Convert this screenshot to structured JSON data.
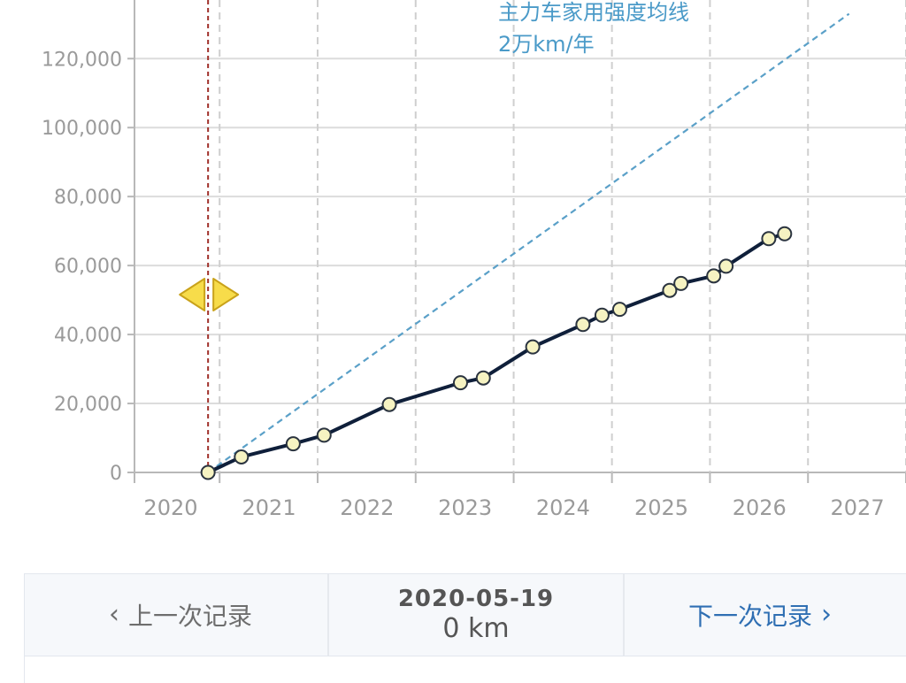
{
  "chart_data": {
    "type": "line",
    "x_axis": {
      "tick_labels": [
        "2020",
        "2021",
        "2022",
        "2023",
        "2024",
        "2025",
        "2026",
        "2027"
      ],
      "range": [
        "2019-08-19",
        "2027-07-01"
      ]
    },
    "y_axis": {
      "tick_labels": [
        "0",
        "20,000",
        "40,000",
        "60,000",
        "80,000",
        "100,000",
        "120,000"
      ],
      "ticks": [
        0,
        20000,
        40000,
        60000,
        80000,
        100000,
        120000
      ],
      "range": [
        0,
        137000
      ]
    },
    "grid": "dashed vertical and solid horizontal",
    "series": [
      {
        "color": "#0f1f3a",
        "marker_fill": "#f6f3c2",
        "points": [
          {
            "x": "2020-05-19",
            "y": 0
          },
          {
            "x": "2020-09-20",
            "y": 4500
          },
          {
            "x": "2021-04-01",
            "y": 8300
          },
          {
            "x": "2021-07-25",
            "y": 10800
          },
          {
            "x": "2022-03-25",
            "y": 19700
          },
          {
            "x": "2022-12-15",
            "y": 26000
          },
          {
            "x": "2023-03-10",
            "y": 27400
          },
          {
            "x": "2023-09-10",
            "y": 36400
          },
          {
            "x": "2024-03-15",
            "y": 42900
          },
          {
            "x": "2024-05-25",
            "y": 45600
          },
          {
            "x": "2024-07-30",
            "y": 47300
          },
          {
            "x": "2025-02-01",
            "y": 52800
          },
          {
            "x": "2025-03-15",
            "y": 54800
          },
          {
            "x": "2025-07-15",
            "y": 57000
          },
          {
            "x": "2025-08-30",
            "y": 59800
          },
          {
            "x": "2026-02-05",
            "y": 67800
          },
          {
            "x": "2026-04-05",
            "y": 69200
          }
        ]
      }
    ],
    "reference_line": {
      "label_line1": "主力车家用强度均线",
      "label_line2": "2万km/年",
      "color": "#5aa0c8",
      "style": "dashed",
      "points": [
        {
          "x": "2020-05-19",
          "y": 0
        },
        {
          "x": "2026-12-01",
          "y": 133000
        }
      ]
    },
    "cursor": {
      "x": "2020-05-19",
      "line_color": "#a0302a",
      "handle_color": "#f7dc4a"
    }
  },
  "navigation": {
    "prev_label": "上一次记录",
    "next_label": "下一次记录",
    "current_date": "2020-05-19",
    "current_value": "0 km"
  }
}
